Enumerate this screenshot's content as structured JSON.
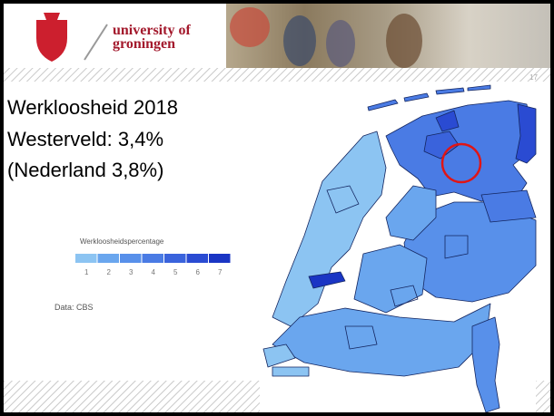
{
  "header": {
    "university_line1": "university of",
    "university_line2": "groningen",
    "page_number": "17"
  },
  "slide": {
    "title_lines": [
      "Werkloosheid 2018",
      "Westerveld: 3,4%",
      "(Nederland 3,8%)"
    ],
    "legend": {
      "title": "Werkloosheidspercentage",
      "items": [
        {
          "label": 1,
          "color": "#8cc4f2"
        },
        {
          "label": 2,
          "color": "#6aa6ee"
        },
        {
          "label": 3,
          "color": "#5890ea"
        },
        {
          "label": 4,
          "color": "#4a7be4"
        },
        {
          "label": 5,
          "color": "#3a63dc"
        },
        {
          "label": 6,
          "color": "#2a4bd2"
        },
        {
          "label": 7,
          "color": "#1a35c4"
        }
      ]
    },
    "source": "Data: CBS"
  }
}
